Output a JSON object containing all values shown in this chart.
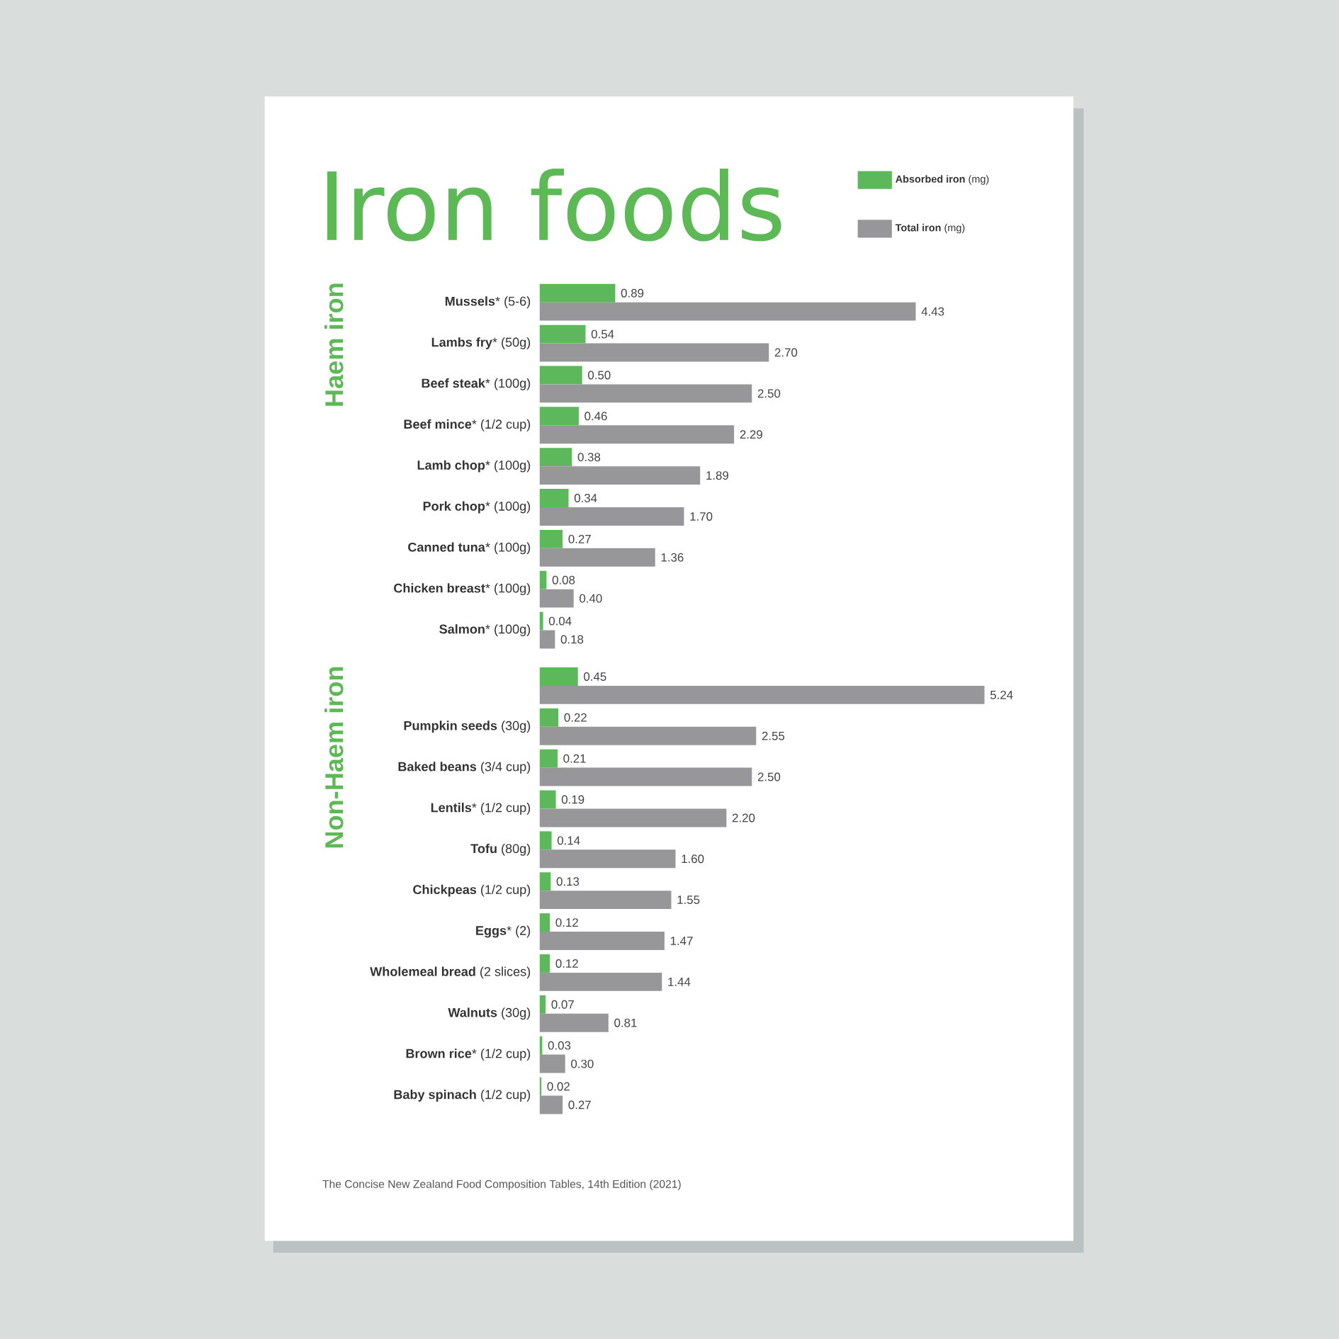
{
  "chart_data": [
    {
      "type": "bar",
      "orientation": "horizontal",
      "title": "Iron foods",
      "ylabel": "Haem iron",
      "legend": "top right",
      "tick_labels": "y",
      "categories": [
        "**Mussels*** (5-6)",
        "**Lambs fry*** (50g)",
        "**Beef steak*** (100g)",
        "**Beef mince*** (1/2 cup)",
        "**Lamb chop*** (100g)",
        "**Pork chop*** (100g)",
        "**Canned tuna*** (100g)",
        "**Chicken breast*** (100g)",
        "**Salmon*** (100g)"
      ],
      "series": [
        {
          "name": "**Absorbed iron** (mg)",
          "color": "#5cb85a",
          "values": [
            0.89,
            0.54,
            0.5,
            0.46,
            0.38,
            0.34,
            0.27,
            0.08,
            0.04
          ],
          "value_labels": [
            "0.89",
            "0.54",
            "0.50",
            "0.46",
            "0.38",
            "0.34",
            "0.27",
            "0.08",
            "0.04"
          ]
        },
        {
          "name": "**Total iron** (mg)",
          "color": "#97979a",
          "values": [
            4.43,
            2.7,
            2.5,
            2.29,
            1.89,
            1.7,
            1.36,
            0.4,
            0.18
          ],
          "value_labels": [
            "4.43",
            "2.70",
            "2.50",
            "2.29",
            "1.89",
            "1.70",
            "1.36",
            "0.40",
            "0.18"
          ]
        }
      ]
    },
    {
      "type": "bar",
      "orientation": "horizontal",
      "ylabel": "Non-Haem iron",
      "tick_labels": "y",
      "categories": [
        null,
        "**Pumpkin seeds** (30g)",
        "**Baked beans** (3/4 cup)",
        "**Lentils*** (1/2 cup)",
        "**Tofu** (80g)",
        "**Chickpeas** (1/2 cup)",
        "**Eggs*** (2)",
        "**Wholemeal bread** (2 slices)",
        "**Walnuts** (30g)",
        "**Brown rice*** (1/2 cup)",
        "**Baby spinach** (1/2 cup)"
      ],
      "series": [
        {
          "color": "#5cb85a",
          "values": [
            0.45,
            0.22,
            0.21,
            0.19,
            0.14,
            0.13,
            0.12,
            0.12,
            0.07,
            0.03,
            0.02
          ],
          "value_labels": [
            "0.45",
            "0.22",
            "0.21",
            "0.19",
            "0.14",
            "0.13",
            "0.12",
            "0.12",
            "0.07",
            "0.03",
            "0.02"
          ]
        },
        {
          "color": "#97979a",
          "values": [
            5.24,
            2.55,
            2.5,
            2.2,
            1.6,
            1.55,
            1.47,
            1.44,
            0.81,
            0.3,
            0.27
          ],
          "value_labels": [
            "5.24",
            "2.55",
            "2.50",
            "2.20",
            "1.60",
            "1.55",
            "1.47",
            "1.44",
            "0.81",
            "0.30",
            "0.27"
          ]
        }
      ],
      "annotations": [
        "The Concise New Zealand Food Composition Tables, 14th Edition (2021)"
      ]
    }
  ]
}
